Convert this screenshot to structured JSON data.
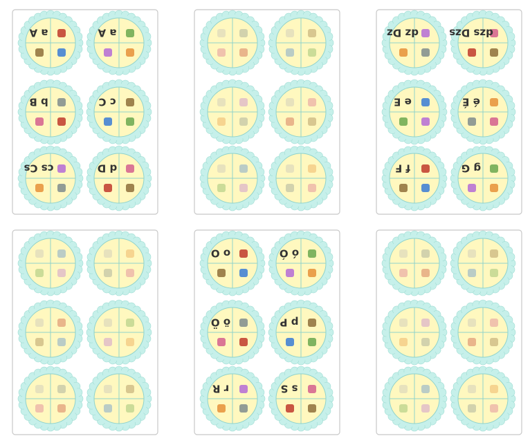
{
  "cards": [
    {
      "letters": [
        "a A",
        "a A",
        "b B",
        "c C",
        "cs Cs",
        "d D"
      ]
    },
    {},
    {
      "letters": [
        "dz Dz",
        "dzs Dzs",
        "e E",
        "é É",
        "f F",
        "g G"
      ]
    },
    {},
    {
      "letters": [
        "o O",
        "ó Ó",
        "ö Ö",
        "p P",
        "r R",
        "s S"
      ]
    },
    {}
  ]
}
